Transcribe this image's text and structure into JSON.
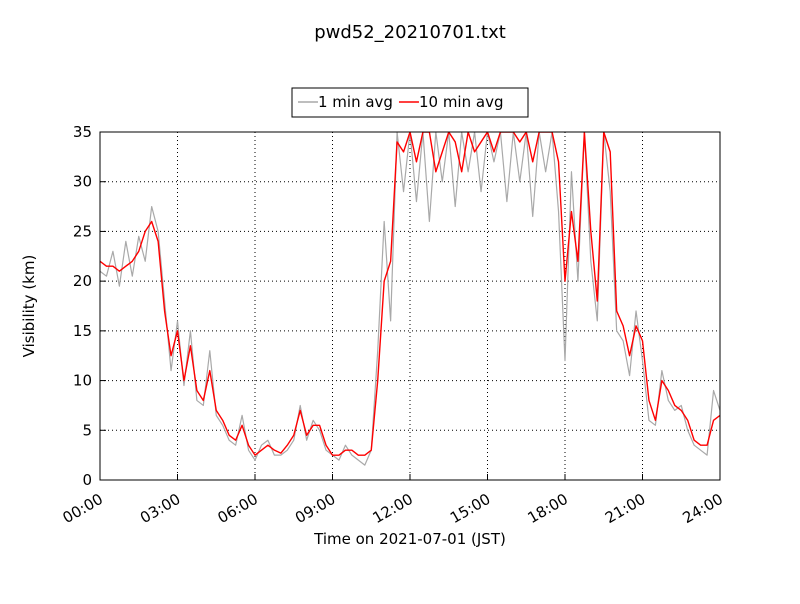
{
  "chart_data": {
    "type": "line",
    "title": "pwd52_20210701.txt",
    "xlabel": "Time on 2021-07-01 (JST)",
    "ylabel": "Visibility (km)",
    "x": [
      0,
      0.25,
      0.5,
      0.75,
      1,
      1.25,
      1.5,
      1.75,
      2,
      2.25,
      2.5,
      2.75,
      3,
      3.25,
      3.5,
      3.75,
      4,
      4.25,
      4.5,
      4.75,
      5,
      5.25,
      5.5,
      5.75,
      6,
      6.25,
      6.5,
      6.75,
      7,
      7.25,
      7.5,
      7.75,
      8,
      8.25,
      8.5,
      8.75,
      9,
      9.25,
      9.5,
      9.75,
      10,
      10.25,
      10.5,
      10.75,
      11,
      11.25,
      11.5,
      11.75,
      12,
      12.25,
      12.5,
      12.75,
      13,
      13.25,
      13.5,
      13.75,
      14,
      14.25,
      14.5,
      14.75,
      15,
      15.25,
      15.5,
      15.75,
      16,
      16.25,
      16.5,
      16.75,
      17,
      17.25,
      17.5,
      17.75,
      18,
      18.25,
      18.5,
      18.75,
      19,
      19.25,
      19.5,
      19.75,
      20,
      20.25,
      20.5,
      20.75,
      21,
      21.25,
      21.5,
      21.75,
      22,
      22.25,
      22.5,
      22.75,
      23,
      23.25,
      23.5,
      23.75,
      24
    ],
    "series": [
      {
        "name": "1 min avg",
        "color": "#a9a9a9",
        "values": [
          21,
          20.5,
          23,
          19.5,
          24,
          20.5,
          24.5,
          22,
          27.5,
          25,
          18,
          11,
          16,
          9.5,
          15,
          8,
          7.5,
          13,
          6.5,
          5.5,
          4,
          3.5,
          6.5,
          3,
          2,
          3.5,
          4,
          2.5,
          2.5,
          3,
          4,
          7.5,
          4,
          6,
          5,
          3,
          2.5,
          2,
          3.5,
          2.5,
          2,
          1.5,
          3,
          13,
          26,
          16,
          35,
          29,
          35,
          28,
          35,
          26,
          35,
          30,
          35,
          27.5,
          35,
          31,
          35,
          29,
          35,
          32,
          35,
          28,
          35,
          30,
          35,
          26.5,
          35,
          31,
          35,
          27,
          12,
          31,
          20,
          35,
          22,
          16,
          35,
          29,
          15,
          14,
          10.5,
          17,
          12,
          6,
          5.5,
          11,
          8,
          7,
          7.5,
          5,
          3.5,
          3,
          2.5,
          9,
          7
        ]
      },
      {
        "name": "10 min avg",
        "color": "#ff0000",
        "values": [
          22,
          21.5,
          21.5,
          21,
          21.5,
          22,
          23,
          25,
          26,
          24,
          17,
          12.5,
          15,
          10,
          13.5,
          9,
          8,
          11,
          7,
          6,
          4.5,
          4,
          5.5,
          3.5,
          2.5,
          3,
          3.5,
          3,
          2.7,
          3.5,
          4.5,
          7,
          4.5,
          5.5,
          5.5,
          3.5,
          2.5,
          2.5,
          3,
          3,
          2.5,
          2.5,
          3,
          10,
          20,
          22,
          34,
          33,
          35,
          32,
          35,
          35,
          31,
          33,
          35,
          34,
          31,
          35,
          33,
          34,
          35,
          33,
          35,
          35,
          35,
          34,
          35,
          32,
          35,
          35,
          35,
          32,
          20,
          27,
          22,
          35,
          25,
          18,
          35,
          33,
          17,
          15.5,
          12.5,
          15.5,
          14,
          8,
          6,
          10,
          9,
          7.5,
          7,
          6,
          4,
          3.5,
          3.5,
          6,
          6.5
        ]
      }
    ],
    "xlim": [
      0,
      24
    ],
    "xticks": [
      {
        "value": 0,
        "label": "00:00"
      },
      {
        "value": 3,
        "label": "03:00"
      },
      {
        "value": 6,
        "label": "06:00"
      },
      {
        "value": 9,
        "label": "09:00"
      },
      {
        "value": 12,
        "label": "12:00"
      },
      {
        "value": 15,
        "label": "15:00"
      },
      {
        "value": 18,
        "label": "18:00"
      },
      {
        "value": 21,
        "label": "21:00"
      },
      {
        "value": 24,
        "label": "24:00"
      }
    ],
    "ylim": [
      0,
      35
    ],
    "yticks": [
      0,
      5,
      10,
      15,
      20,
      25,
      30,
      35
    ],
    "grid": true,
    "legend": "top"
  }
}
